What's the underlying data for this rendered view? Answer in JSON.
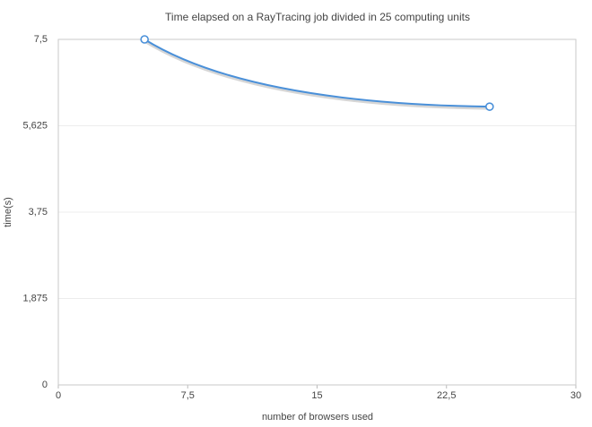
{
  "chart_data": {
    "type": "line",
    "title": "Time elapsed on a RayTracing job divided in 25 computing units",
    "x_label": "number of browsers used",
    "y_label": "time(s)",
    "x": [
      5,
      25
    ],
    "series": [
      {
        "name": "time",
        "color": "#4a90d9",
        "values": [
          7.5,
          6.04
        ]
      }
    ],
    "xlim": [
      0,
      30
    ],
    "xticks": [
      0,
      {
        "value": 7.5,
        "label": "7,5"
      },
      15,
      {
        "value": 22.5,
        "label": "22,5"
      },
      30
    ],
    "ylim": [
      0,
      7.5
    ],
    "yticks": [
      0,
      {
        "value": 1.875,
        "label": "1,875"
      },
      {
        "value": 3.75,
        "label": "3,75"
      },
      {
        "value": 5.625,
        "label": "5,625"
      },
      {
        "value": 7.5,
        "label": "7,5"
      }
    ],
    "grid": true
  }
}
